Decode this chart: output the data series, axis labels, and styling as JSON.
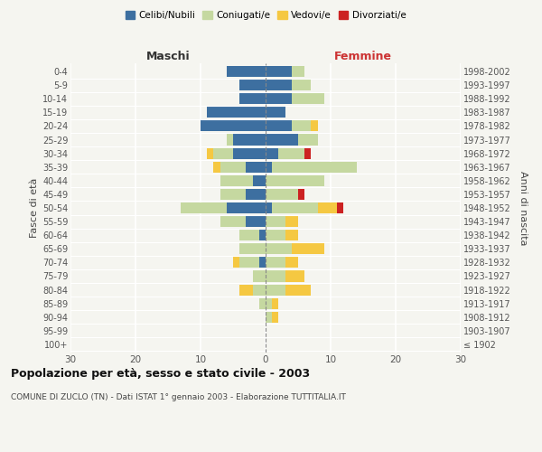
{
  "age_groups": [
    "100+",
    "95-99",
    "90-94",
    "85-89",
    "80-84",
    "75-79",
    "70-74",
    "65-69",
    "60-64",
    "55-59",
    "50-54",
    "45-49",
    "40-44",
    "35-39",
    "30-34",
    "25-29",
    "20-24",
    "15-19",
    "10-14",
    "5-9",
    "0-4"
  ],
  "birth_years": [
    "≤ 1902",
    "1903-1907",
    "1908-1912",
    "1913-1917",
    "1918-1922",
    "1923-1927",
    "1928-1932",
    "1933-1937",
    "1938-1942",
    "1943-1947",
    "1948-1952",
    "1953-1957",
    "1958-1962",
    "1963-1967",
    "1968-1972",
    "1973-1977",
    "1978-1982",
    "1983-1987",
    "1988-1992",
    "1993-1997",
    "1998-2002"
  ],
  "male": {
    "celibi": [
      0,
      0,
      0,
      0,
      0,
      0,
      1,
      0,
      1,
      3,
      6,
      3,
      2,
      3,
      5,
      5,
      10,
      9,
      4,
      4,
      6
    ],
    "coniugati": [
      0,
      0,
      0,
      1,
      2,
      2,
      3,
      4,
      3,
      4,
      7,
      4,
      5,
      4,
      3,
      1,
      0,
      0,
      0,
      0,
      0
    ],
    "vedovi": [
      0,
      0,
      0,
      0,
      2,
      0,
      1,
      0,
      0,
      0,
      0,
      0,
      0,
      1,
      1,
      0,
      0,
      0,
      0,
      0,
      0
    ],
    "divorziati": [
      0,
      0,
      0,
      0,
      0,
      0,
      0,
      0,
      0,
      0,
      0,
      0,
      0,
      0,
      0,
      0,
      0,
      0,
      0,
      0,
      0
    ]
  },
  "female": {
    "nubili": [
      0,
      0,
      0,
      0,
      0,
      0,
      0,
      0,
      0,
      0,
      1,
      0,
      0,
      1,
      2,
      5,
      4,
      3,
      4,
      4,
      4
    ],
    "coniugate": [
      0,
      0,
      1,
      1,
      3,
      3,
      3,
      4,
      3,
      3,
      7,
      5,
      9,
      13,
      4,
      3,
      3,
      0,
      5,
      3,
      2
    ],
    "vedove": [
      0,
      0,
      1,
      1,
      4,
      3,
      2,
      5,
      2,
      2,
      3,
      0,
      0,
      0,
      0,
      0,
      1,
      0,
      0,
      0,
      0
    ],
    "divorziate": [
      0,
      0,
      0,
      0,
      0,
      0,
      0,
      0,
      0,
      0,
      1,
      1,
      0,
      0,
      1,
      0,
      0,
      0,
      0,
      0,
      0
    ]
  },
  "colors": {
    "celibi_nubili": "#3d6fa0",
    "coniugati": "#c5d8a0",
    "vedovi": "#f5c842",
    "divorziati": "#cc2222"
  },
  "xlim": 30,
  "title": "Popolazione per età, sesso e stato civile - 2003",
  "subtitle": "COMUNE DI ZUCLO (TN) - Dati ISTAT 1° gennaio 2003 - Elaborazione TUTTITALIA.IT",
  "xlabel_left": "Maschi",
  "xlabel_right": "Femmine",
  "ylabel_left": "Fasce di età",
  "ylabel_right": "Anni di nascita",
  "legend_labels": [
    "Celibi/Nubili",
    "Coniugati/e",
    "Vedovi/e",
    "Divorziati/e"
  ],
  "background_color": "#f5f5f0",
  "bar_height": 0.8
}
